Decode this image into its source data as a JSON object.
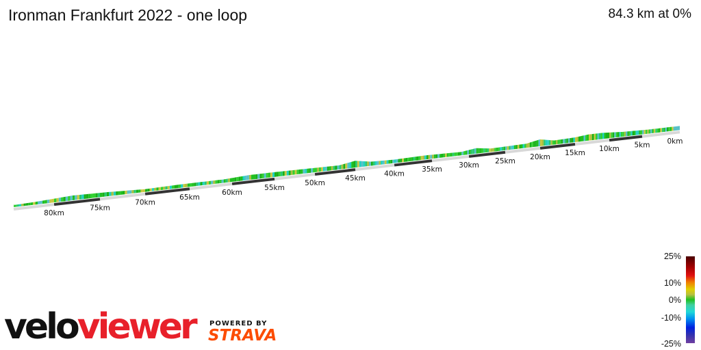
{
  "header": {
    "title": "Ironman Frankfurt 2022 - one loop",
    "summary": "84.3 km at 0%"
  },
  "chart_data": {
    "type": "area",
    "title": "Ironman Frankfurt 2022 - one loop",
    "distance_km": 84.3,
    "x_ticks": [
      "0km",
      "5km",
      "10km",
      "15km",
      "20km",
      "25km",
      "30km",
      "35km",
      "40km",
      "45km",
      "50km",
      "55km",
      "60km",
      "65km",
      "70km",
      "75km",
      "80km"
    ],
    "x_tick_values": [
      0,
      5,
      10,
      15,
      20,
      25,
      30,
      35,
      40,
      45,
      50,
      55,
      60,
      65,
      70,
      75,
      80
    ],
    "gradient_legend": {
      "labels": [
        "25%",
        "10%",
        "0%",
        "-10%",
        "-25%"
      ],
      "range": [
        -25,
        25
      ]
    },
    "colors": {
      "flat": "#20c020",
      "climb": "#c8c840",
      "descent": "#40c8d0"
    }
  },
  "branding": {
    "logo_part1": "velo",
    "logo_part2": "viewer",
    "powered_by": "POWERED BY",
    "strava": "STRAVA",
    "strava_color": "#fc4c02"
  }
}
